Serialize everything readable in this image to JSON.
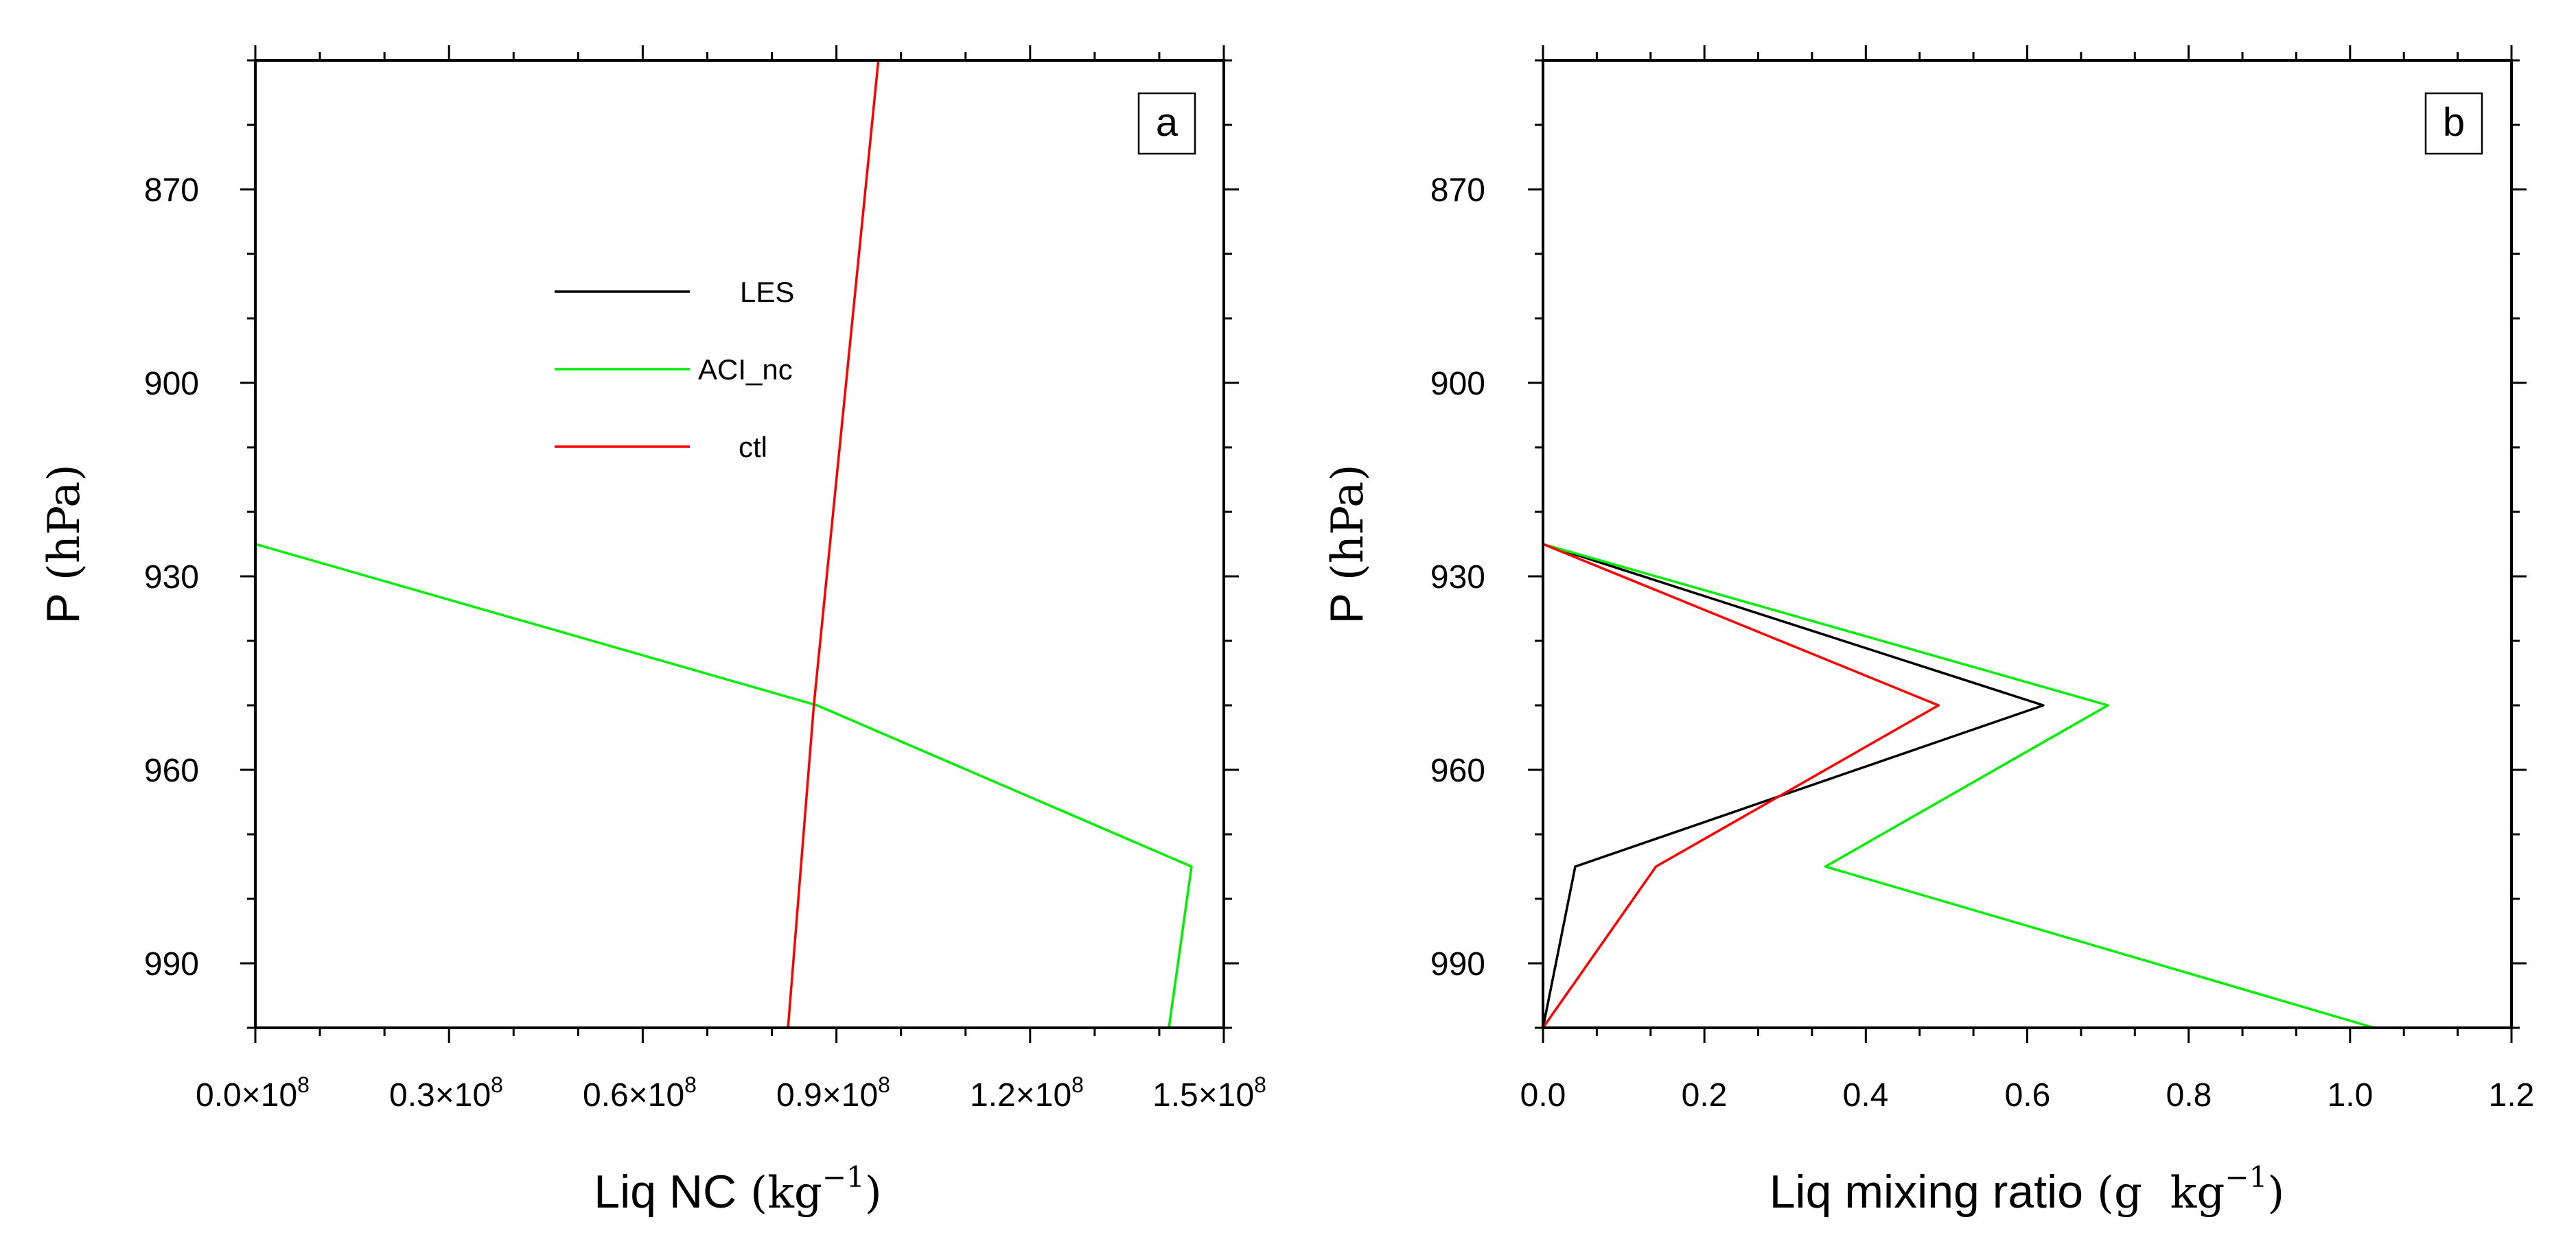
{
  "chart_data": [
    {
      "type": "line",
      "panel_label": "a",
      "xlabel": "Liq NC",
      "xlabel_unit": "kg",
      "xlabel_unit_exponent": "−1",
      "ylabel": "P",
      "ylabel_unit": "(hPa)",
      "xlim": [
        0,
        150000000
      ],
      "ylim": [
        1000,
        850
      ],
      "y_inverted": true,
      "x_ticks": [
        0,
        30000000,
        60000000,
        90000000,
        120000000,
        150000000
      ],
      "x_tick_labels": [
        "0.0×10",
        "0.3×10",
        "0.6×10",
        "0.9×10",
        "1.2×10",
        "1.5×10"
      ],
      "x_tick_exponent": "8",
      "y_ticks": [
        870,
        900,
        930,
        960,
        990
      ],
      "y_tick_labels": [
        "870",
        "900",
        "930",
        "960",
        "990"
      ],
      "grid": false,
      "legend_position": "upper-center",
      "series": [
        {
          "name": "LES",
          "color": "#000000",
          "x": [],
          "y": []
        },
        {
          "name": "ACI_nc",
          "color": "#00ee00",
          "x": [
            0,
            0,
            0,
            87000000,
            145000000,
            141500000
          ],
          "y": [
            850,
            900,
            925,
            950,
            975,
            1000
          ]
        },
        {
          "name": "ctl",
          "color": "#ff0000",
          "x": [
            96500000,
            86500000,
            82500000
          ],
          "y": [
            850,
            950,
            1000
          ]
        }
      ]
    },
    {
      "type": "line",
      "panel_label": "b",
      "xlabel": "Liq mixing ratio",
      "xlabel_unit": "g  kg",
      "xlabel_unit_exponent": "−1",
      "ylabel": "P",
      "ylabel_unit": "(hPa)",
      "xlim": [
        0,
        1.2
      ],
      "ylim": [
        1000,
        850
      ],
      "y_inverted": true,
      "x_ticks": [
        0,
        0.2,
        0.4,
        0.6,
        0.8,
        1.0,
        1.2
      ],
      "x_tick_labels": [
        "0.0",
        "0.2",
        "0.4",
        "0.6",
        "0.8",
        "1.0",
        "1.2"
      ],
      "y_ticks": [
        870,
        900,
        930,
        960,
        990
      ],
      "y_tick_labels": [
        "870",
        "900",
        "930",
        "960",
        "990"
      ],
      "grid": false,
      "series": [
        {
          "name": "LES",
          "color": "#000000",
          "x": [
            0,
            0,
            0.62,
            0.04,
            0.0
          ],
          "y": [
            850,
            925,
            950,
            975,
            1000
          ]
        },
        {
          "name": "ACI_nc",
          "color": "#00ee00",
          "x": [
            0,
            0,
            0.7,
            0.35,
            1.03
          ],
          "y": [
            850,
            925,
            950,
            975,
            1000
          ]
        },
        {
          "name": "ctl",
          "color": "#ff0000",
          "x": [
            0,
            0,
            0.49,
            0.14,
            0.0
          ],
          "y": [
            850,
            925,
            950,
            975,
            1000
          ]
        }
      ]
    }
  ]
}
